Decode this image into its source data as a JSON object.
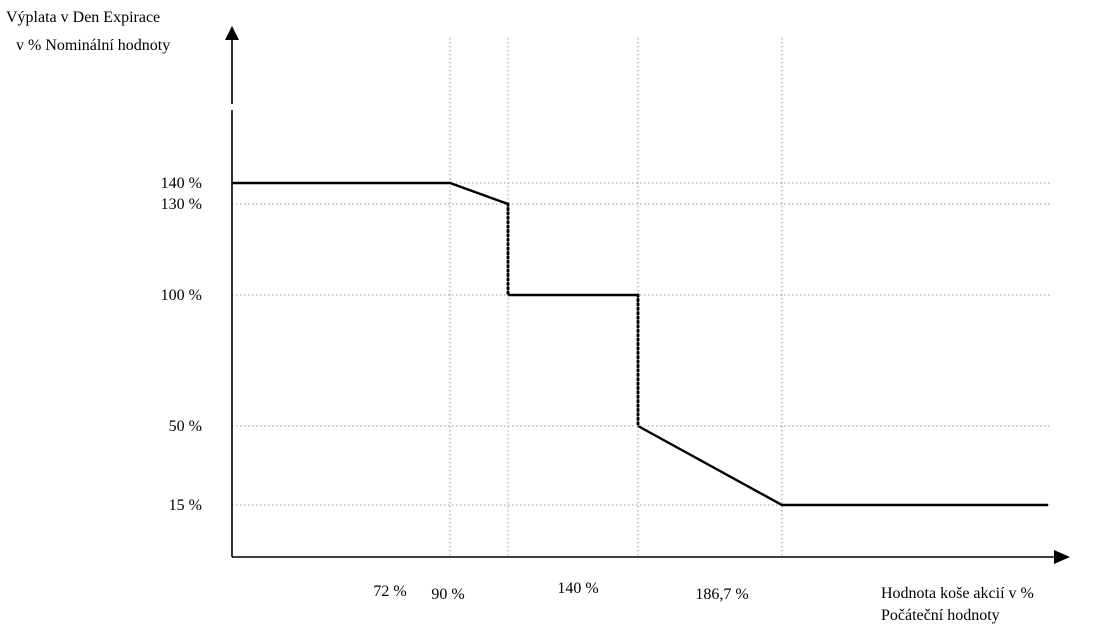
{
  "chart_data": {
    "type": "line",
    "ylabel_lines": [
      "Výplata v Den Expirace",
      "v % Nominální hodnoty"
    ],
    "xlabel_lines": [
      "Hodnota koše akcií v %",
      "Počáteční hodnoty"
    ],
    "x_ticks": [
      {
        "label": "72 %",
        "value": 72
      },
      {
        "label": "90 %",
        "value": 90
      },
      {
        "label": "140 %",
        "value": 140
      },
      {
        "label": "186,7 %",
        "value": 186.7
      }
    ],
    "y_ticks": [
      {
        "label": "140 %",
        "value": 140
      },
      {
        "label": "130 %",
        "value": 130
      },
      {
        "label": "100 %",
        "value": 100
      },
      {
        "label": "50 %",
        "value": 50
      },
      {
        "label": "15 %",
        "value": 15
      }
    ],
    "segments": [
      {
        "style": "solid",
        "points": [
          [
            0,
            140
          ],
          [
            72,
            140
          ],
          [
            90,
            130
          ]
        ]
      },
      {
        "style": "dotted",
        "points": [
          [
            90,
            130
          ],
          [
            90,
            100
          ]
        ]
      },
      {
        "style": "solid",
        "points": [
          [
            90,
            100
          ],
          [
            140,
            100
          ]
        ]
      },
      {
        "style": "dotted",
        "points": [
          [
            140,
            100
          ],
          [
            140,
            50
          ]
        ]
      },
      {
        "style": "solid",
        "points": [
          [
            140,
            50
          ],
          [
            186.7,
            15
          ],
          [
            300,
            15
          ]
        ]
      }
    ],
    "grid": true
  }
}
